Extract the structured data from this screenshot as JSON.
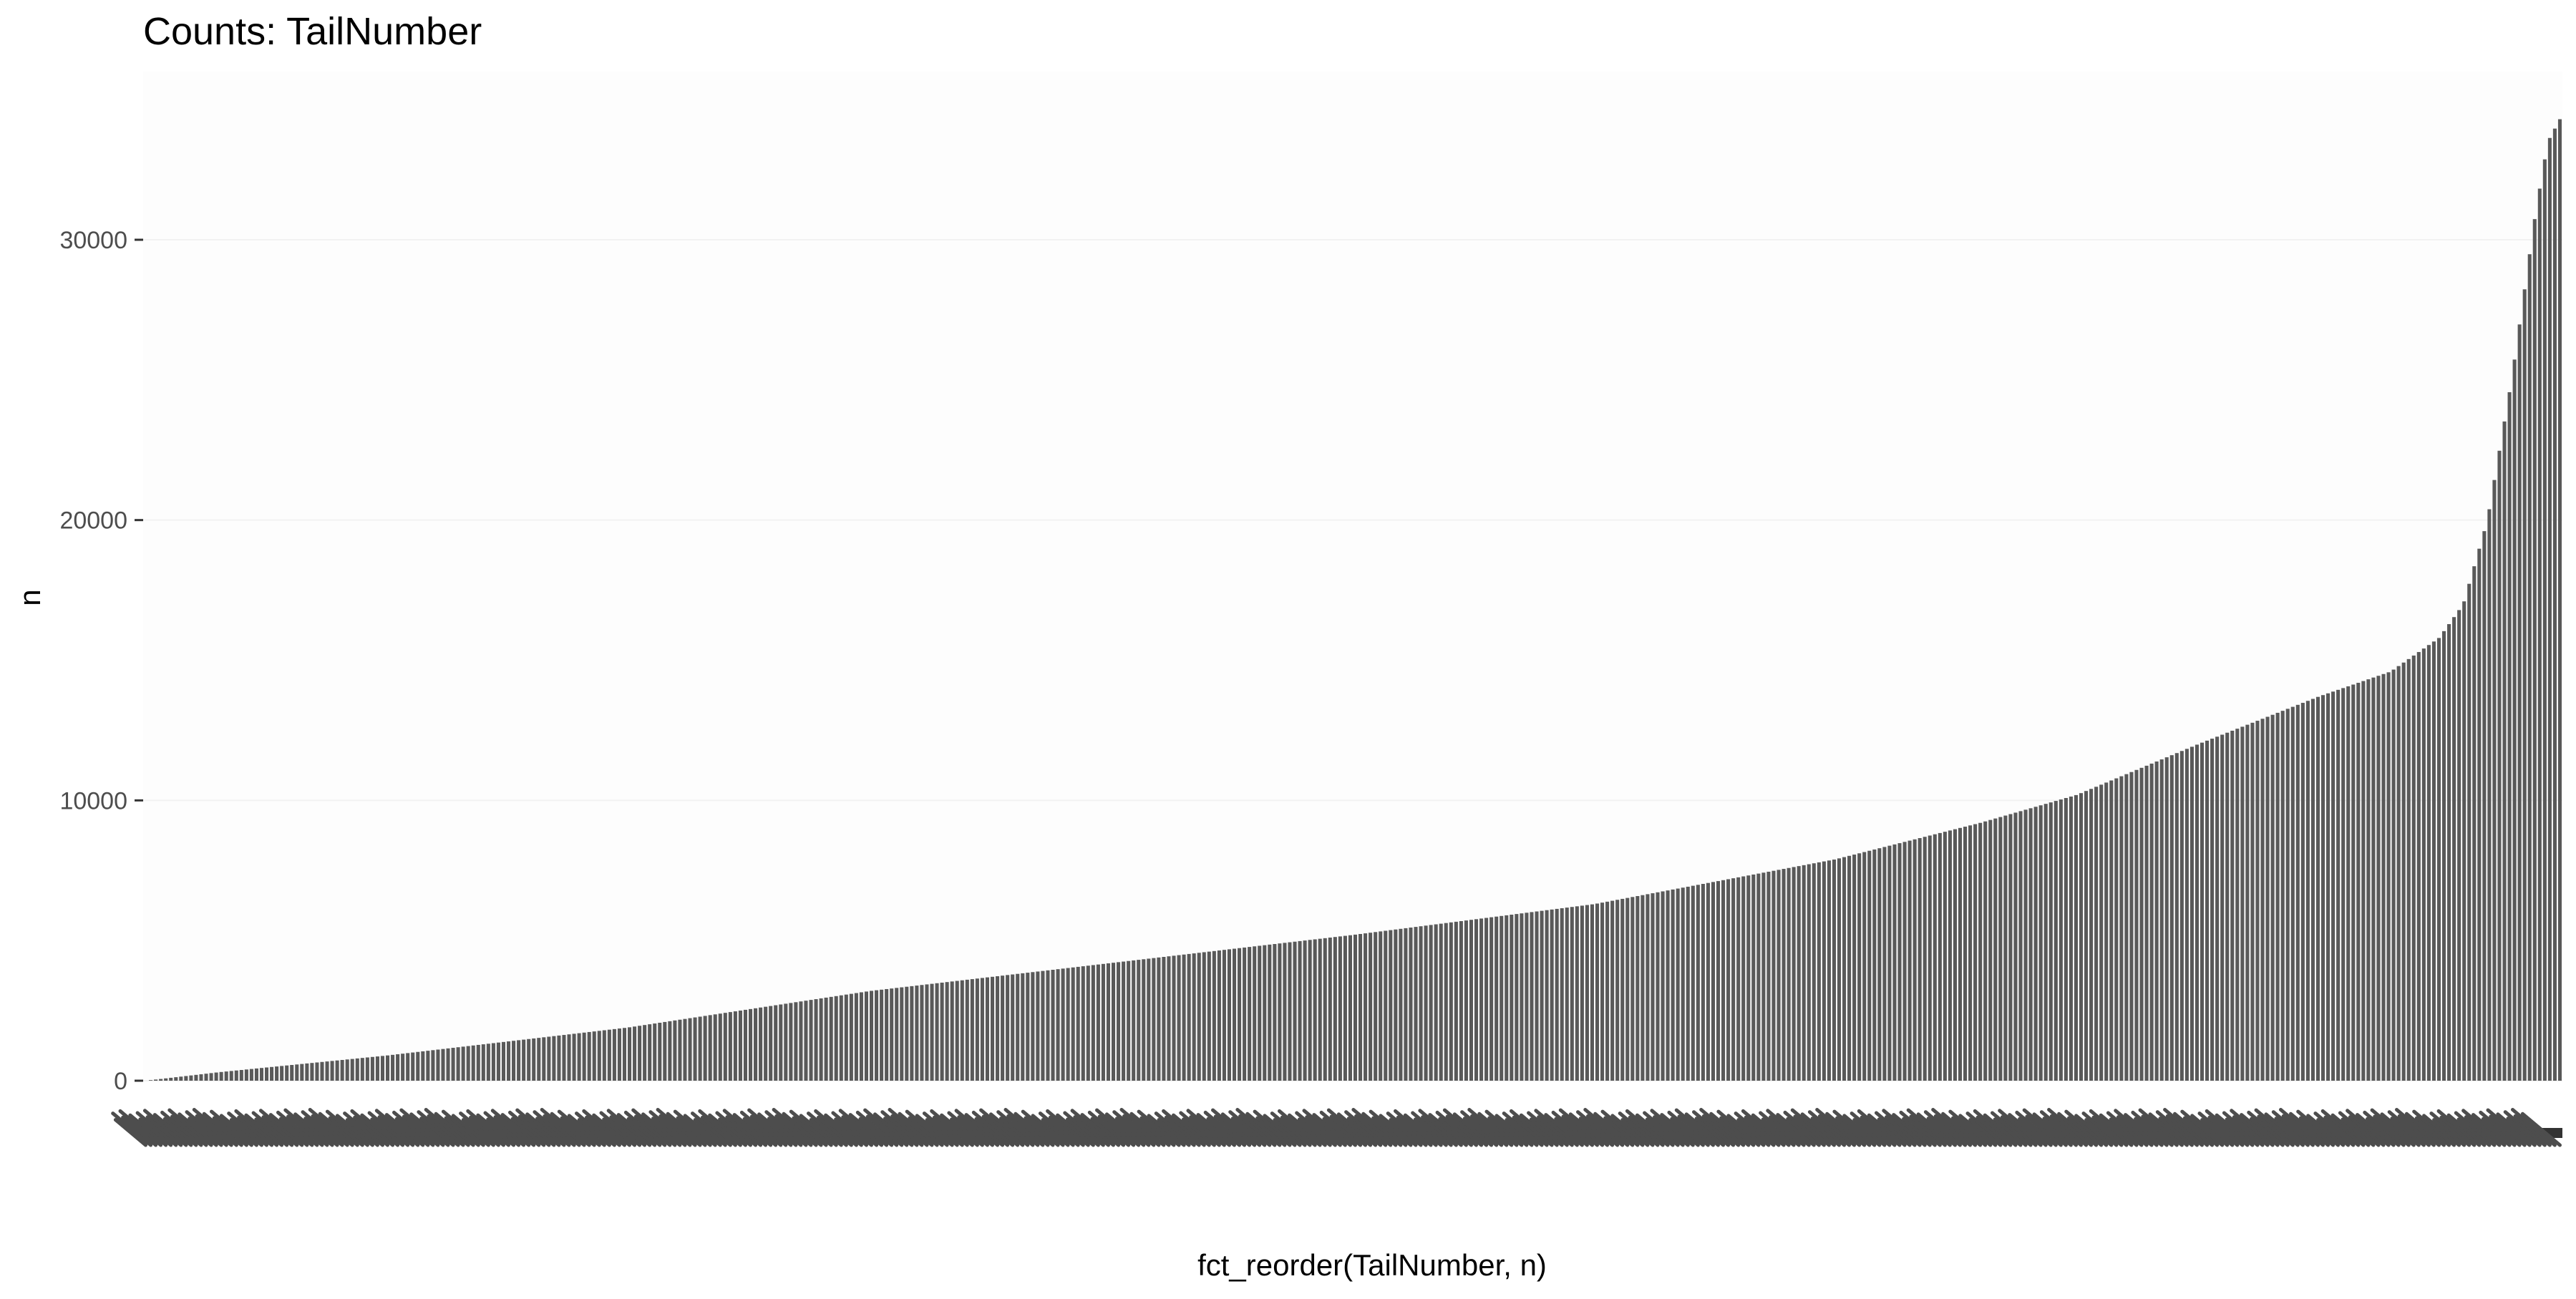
{
  "chart_data": {
    "type": "bar",
    "title": "Counts: TailNumber",
    "xlabel": "fct_reorder(TailNumber, n)",
    "ylabel": "n",
    "ylim": [
      0,
      36000
    ],
    "yticks": [
      0,
      10000,
      20000,
      30000
    ],
    "ytick_labels": [
      "0",
      "10000",
      "20000",
      "30000"
    ],
    "bar_count": 480,
    "bar_color": "#595959",
    "sorted": "ascending",
    "values_profile": {
      "x_fraction": [
        0.0,
        0.03,
        0.1,
        0.2,
        0.3,
        0.4,
        0.5,
        0.6,
        0.7,
        0.76,
        0.8,
        0.85,
        0.9,
        0.93,
        0.95,
        0.96,
        0.97,
        0.98,
        0.985,
        0.99,
        0.995,
        1.0
      ],
      "values": [
        0,
        300,
        900,
        1900,
        3200,
        4200,
        5200,
        6300,
        7900,
        9200,
        10200,
        12000,
        13700,
        14600,
        15800,
        17000,
        20000,
        25000,
        28000,
        31000,
        33500,
        34300
      ]
    },
    "grid": true,
    "legend": "none"
  }
}
